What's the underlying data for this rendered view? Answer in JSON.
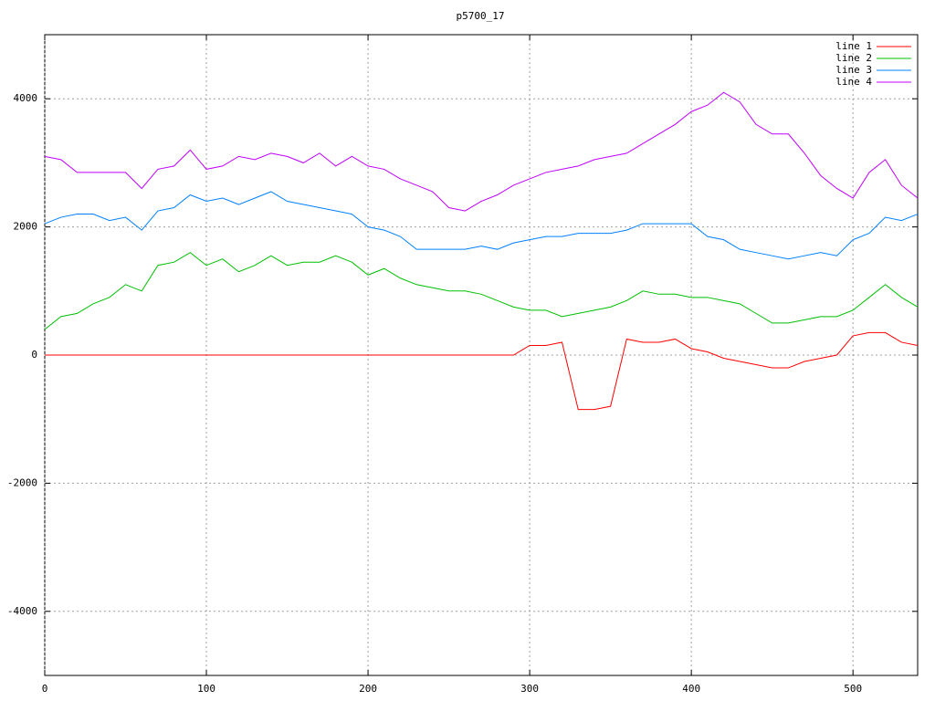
{
  "chart_data": {
    "type": "line",
    "title": "p5700_17",
    "x": [
      0,
      10,
      20,
      30,
      40,
      50,
      60,
      70,
      80,
      90,
      100,
      110,
      120,
      130,
      140,
      150,
      160,
      170,
      180,
      190,
      200,
      210,
      220,
      230,
      240,
      250,
      260,
      270,
      280,
      290,
      300,
      310,
      320,
      330,
      340,
      350,
      360,
      370,
      380,
      390,
      400,
      410,
      420,
      430,
      440,
      450,
      460,
      470,
      480,
      490,
      500,
      510,
      520,
      530,
      540
    ],
    "series": [
      {
        "name": "line 1",
        "color": "#ff0000",
        "values": [
          0,
          0,
          0,
          0,
          0,
          0,
          0,
          0,
          0,
          0,
          0,
          0,
          0,
          0,
          0,
          0,
          0,
          0,
          0,
          0,
          0,
          0,
          0,
          0,
          0,
          0,
          0,
          0,
          0,
          0,
          150,
          150,
          200,
          -850,
          -850,
          -800,
          250,
          200,
          200,
          250,
          100,
          50,
          -50,
          -100,
          -150,
          -200,
          -200,
          -100,
          -50,
          0,
          300,
          350,
          350,
          200,
          150
        ]
      },
      {
        "name": "line 2",
        "color": "#00c000",
        "values": [
          400,
          600,
          650,
          800,
          900,
          1100,
          1000,
          1400,
          1450,
          1600,
          1400,
          1500,
          1300,
          1400,
          1550,
          1400,
          1450,
          1450,
          1550,
          1450,
          1250,
          1350,
          1200,
          1100,
          1050,
          1000,
          1000,
          950,
          850,
          750,
          700,
          700,
          600,
          650,
          700,
          750,
          850,
          1000,
          950,
          950,
          900,
          900,
          850,
          800,
          650,
          500,
          500,
          550,
          600,
          600,
          700,
          900,
          1100,
          900,
          750
        ]
      },
      {
        "name": "line 3",
        "color": "#0080ff",
        "values": [
          2050,
          2150,
          2200,
          2200,
          2100,
          2150,
          1950,
          2250,
          2300,
          2500,
          2400,
          2450,
          2350,
          2450,
          2550,
          2400,
          2350,
          2300,
          2250,
          2200,
          2000,
          1950,
          1850,
          1650,
          1650,
          1650,
          1650,
          1700,
          1650,
          1750,
          1800,
          1850,
          1850,
          1900,
          1900,
          1900,
          1950,
          2050,
          2050,
          2050,
          2050,
          1850,
          1800,
          1650,
          1600,
          1550,
          1500,
          1550,
          1600,
          1550,
          1800,
          1900,
          2150,
          2100,
          2200
        ]
      },
      {
        "name": "line 4",
        "color": "#c000ff",
        "values": [
          3100,
          3050,
          2850,
          2850,
          2850,
          2850,
          2600,
          2900,
          2950,
          3200,
          2900,
          2950,
          3100,
          3050,
          3150,
          3100,
          3000,
          3150,
          2950,
          3100,
          2950,
          2900,
          2750,
          2650,
          2550,
          2300,
          2250,
          2400,
          2500,
          2650,
          2750,
          2850,
          2900,
          2950,
          3050,
          3100,
          3150,
          3300,
          3450,
          3600,
          3800,
          3900,
          4100,
          3950,
          3600,
          3450,
          3450,
          3150,
          2800,
          2600,
          2450,
          2850,
          3050,
          2650,
          2450
        ]
      }
    ],
    "xlim": [
      0,
      540
    ],
    "xticks": [
      0,
      100,
      200,
      300,
      400,
      500
    ],
    "ylim": [
      -5000,
      5000
    ],
    "yticks": [
      -4000,
      -2000,
      0,
      2000,
      4000
    ],
    "grid": true,
    "legend": "top-right"
  }
}
